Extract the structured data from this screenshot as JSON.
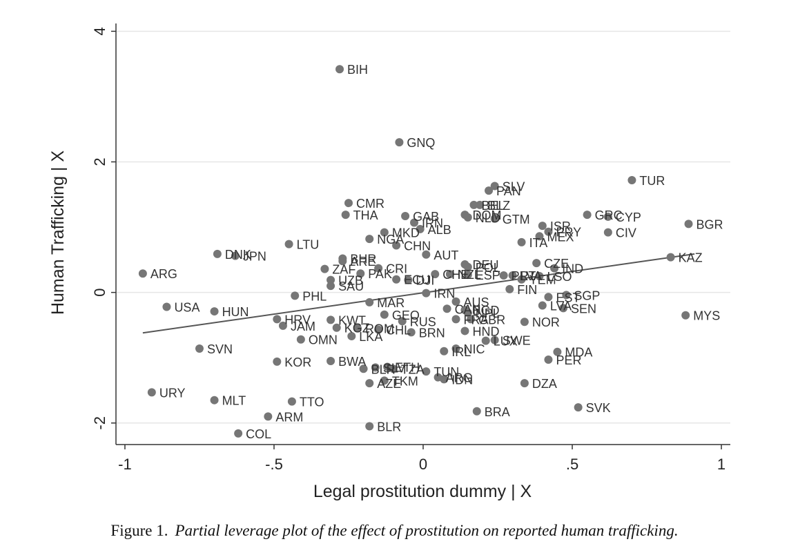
{
  "chart_data": {
    "type": "scatter",
    "xlabel": "Legal prostitution dummy | X",
    "ylabel": "Human Trafficking | X",
    "xlim": [
      -1.03,
      1.03
    ],
    "ylim": [
      -2.33,
      4.12
    ],
    "xticks": [
      -1,
      -0.5,
      0,
      0.5,
      1
    ],
    "xtick_labels": [
      "-1",
      "-.5",
      "0",
      ".5",
      "1"
    ],
    "yticks": [
      -2,
      0,
      2,
      4
    ],
    "ytick_labels": [
      "-2",
      "0",
      "2",
      "4"
    ],
    "grid": "horizontal",
    "point_color": "#767676",
    "line_color": "#555555",
    "fit_line": {
      "x": [
        -0.94,
        0.91
      ],
      "y": [
        -0.62,
        0.59
      ]
    },
    "points": [
      {
        "label": "BIH",
        "x": -0.28,
        "y": 3.42
      },
      {
        "label": "GNQ",
        "x": -0.08,
        "y": 2.3
      },
      {
        "label": "TUR",
        "x": 0.7,
        "y": 1.72
      },
      {
        "label": "SLV",
        "x": 0.24,
        "y": 1.63
      },
      {
        "label": "PAN",
        "x": 0.22,
        "y": 1.56
      },
      {
        "label": "CMR",
        "x": -0.25,
        "y": 1.37
      },
      {
        "label": "BEL",
        "x": 0.17,
        "y": 1.34
      },
      {
        "label": "BLZ",
        "x": 0.19,
        "y": 1.34
      },
      {
        "label": "THA",
        "x": -0.26,
        "y": 1.19
      },
      {
        "label": "GAB",
        "x": -0.06,
        "y": 1.17
      },
      {
        "label": "DOM",
        "x": 0.14,
        "y": 1.19
      },
      {
        "label": "NLD",
        "x": 0.15,
        "y": 1.15
      },
      {
        "label": "GTM",
        "x": 0.24,
        "y": 1.13
      },
      {
        "label": "GRC",
        "x": 0.55,
        "y": 1.19
      },
      {
        "label": "CYP",
        "x": 0.62,
        "y": 1.16
      },
      {
        "label": "BGR",
        "x": 0.89,
        "y": 1.05
      },
      {
        "label": "ISR",
        "x": 0.4,
        "y": 1.02
      },
      {
        "label": "IRN",
        "x": -0.03,
        "y": 1.07
      },
      {
        "label": "ALB",
        "x": -0.01,
        "y": 0.97
      },
      {
        "label": "MKD",
        "x": -0.13,
        "y": 0.92
      },
      {
        "label": "NGA",
        "x": -0.18,
        "y": 0.82
      },
      {
        "label": "CHN",
        "x": -0.09,
        "y": 0.72
      },
      {
        "label": "PRY",
        "x": 0.42,
        "y": 0.93
      },
      {
        "label": "MEX",
        "x": 0.39,
        "y": 0.86
      },
      {
        "label": "CIV",
        "x": 0.62,
        "y": 0.92
      },
      {
        "label": "ITA",
        "x": 0.33,
        "y": 0.77
      },
      {
        "label": "LTU",
        "x": -0.45,
        "y": 0.74
      },
      {
        "label": "DNK",
        "x": -0.69,
        "y": 0.59
      },
      {
        "label": "JPN",
        "x": -0.63,
        "y": 0.56
      },
      {
        "label": "AUT",
        "x": 0.01,
        "y": 0.58
      },
      {
        "label": "KAZ",
        "x": 0.83,
        "y": 0.54
      },
      {
        "label": "BHR",
        "x": -0.27,
        "y": 0.52
      },
      {
        "label": "ARE",
        "x": -0.27,
        "y": 0.48
      },
      {
        "label": "CZE",
        "x": 0.38,
        "y": 0.45
      },
      {
        "label": "IND",
        "x": 0.44,
        "y": 0.37
      },
      {
        "label": "ZAF",
        "x": -0.33,
        "y": 0.36
      },
      {
        "label": "CRI",
        "x": -0.15,
        "y": 0.37
      },
      {
        "label": "DEU",
        "x": 0.14,
        "y": 0.43
      },
      {
        "label": "POL",
        "x": 0.15,
        "y": 0.39
      },
      {
        "label": "ARG",
        "x": -0.94,
        "y": 0.29
      },
      {
        "label": "PAK",
        "x": -0.21,
        "y": 0.29
      },
      {
        "label": "CHE",
        "x": 0.04,
        "y": 0.28
      },
      {
        "label": "NZL",
        "x": 0.09,
        "y": 0.28
      },
      {
        "label": "ESP",
        "x": 0.15,
        "y": 0.27
      },
      {
        "label": "PRT",
        "x": 0.27,
        "y": 0.26
      },
      {
        "label": "LVA",
        "x": 0.3,
        "y": 0.26
      },
      {
        "label": "LSO",
        "x": 0.39,
        "y": 0.25
      },
      {
        "label": "UZB",
        "x": -0.31,
        "y": 0.19
      },
      {
        "label": "ECU",
        "x": -0.09,
        "y": 0.2
      },
      {
        "label": "DJI",
        "x": -0.05,
        "y": 0.19
      },
      {
        "label": "YEM",
        "x": 0.33,
        "y": 0.2
      },
      {
        "label": "SAU",
        "x": -0.31,
        "y": 0.1
      },
      {
        "label": "FIN",
        "x": 0.29,
        "y": 0.05
      },
      {
        "label": "PHL",
        "x": -0.43,
        "y": -0.05
      },
      {
        "label": "IRN",
        "x": 0.01,
        "y": -0.01
      },
      {
        "label": "EST",
        "x": 0.42,
        "y": -0.07
      },
      {
        "label": "SGP",
        "x": 0.48,
        "y": -0.04
      },
      {
        "label": "MAR",
        "x": -0.18,
        "y": -0.15
      },
      {
        "label": "AUS",
        "x": 0.11,
        "y": -0.14
      },
      {
        "label": "LVA",
        "x": 0.4,
        "y": -0.2
      },
      {
        "label": "SEN",
        "x": 0.47,
        "y": -0.24
      },
      {
        "label": "USA",
        "x": -0.86,
        "y": -0.22
      },
      {
        "label": "HUN",
        "x": -0.7,
        "y": -0.29
      },
      {
        "label": "CAN",
        "x": 0.08,
        "y": -0.25
      },
      {
        "label": "BGD",
        "x": 0.14,
        "y": -0.27
      },
      {
        "label": "NPL",
        "x": 0.15,
        "y": -0.31
      },
      {
        "label": "MYS",
        "x": 0.88,
        "y": -0.35
      },
      {
        "label": "GEO",
        "x": -0.13,
        "y": -0.34
      },
      {
        "label": "HRV",
        "x": -0.49,
        "y": -0.41
      },
      {
        "label": "KWT",
        "x": -0.31,
        "y": -0.42
      },
      {
        "label": "RUS",
        "x": -0.07,
        "y": -0.44
      },
      {
        "label": "FRA",
        "x": 0.11,
        "y": -0.41
      },
      {
        "label": "GBR",
        "x": 0.16,
        "y": -0.41
      },
      {
        "label": "NOR",
        "x": 0.34,
        "y": -0.45
      },
      {
        "label": "JAM",
        "x": -0.47,
        "y": -0.51
      },
      {
        "label": "KGZ",
        "x": -0.29,
        "y": -0.54
      },
      {
        "label": "ROM",
        "x": -0.22,
        "y": -0.55
      },
      {
        "label": "CHL",
        "x": -0.15,
        "y": -0.57
      },
      {
        "label": "BRN",
        "x": -0.04,
        "y": -0.61
      },
      {
        "label": "HND",
        "x": 0.14,
        "y": -0.59
      },
      {
        "label": "LKA",
        "x": -0.24,
        "y": -0.67
      },
      {
        "label": "OMN",
        "x": -0.41,
        "y": -0.72
      },
      {
        "label": "LUX",
        "x": 0.21,
        "y": -0.74
      },
      {
        "label": "SWE",
        "x": 0.24,
        "y": -0.73
      },
      {
        "label": "SVN",
        "x": -0.75,
        "y": -0.86
      },
      {
        "label": "NIC",
        "x": 0.11,
        "y": -0.86
      },
      {
        "label": "IRL",
        "x": 0.07,
        "y": -0.9
      },
      {
        "label": "MDA",
        "x": 0.45,
        "y": -0.91
      },
      {
        "label": "PER",
        "x": 0.42,
        "y": -1.03
      },
      {
        "label": "KOR",
        "x": -0.49,
        "y": -1.06
      },
      {
        "label": "BWA",
        "x": -0.31,
        "y": -1.05
      },
      {
        "label": "BLR",
        "x": -0.2,
        "y": -1.17
      },
      {
        "label": "SLV",
        "x": -0.16,
        "y": -1.15
      },
      {
        "label": "ETH",
        "x": -0.12,
        "y": -1.14
      },
      {
        "label": "TZA",
        "x": -0.1,
        "y": -1.17
      },
      {
        "label": "TUN",
        "x": 0.01,
        "y": -1.21
      },
      {
        "label": "ARG",
        "x": 0.05,
        "y": -1.3
      },
      {
        "label": "IDN",
        "x": 0.07,
        "y": -1.33
      },
      {
        "label": "TKM",
        "x": -0.13,
        "y": -1.35
      },
      {
        "label": "AZE",
        "x": -0.18,
        "y": -1.39
      },
      {
        "label": "DZA",
        "x": 0.34,
        "y": -1.39
      },
      {
        "label": "URY",
        "x": -0.91,
        "y": -1.53
      },
      {
        "label": "MLT",
        "x": -0.7,
        "y": -1.65
      },
      {
        "label": "TTO",
        "x": -0.44,
        "y": -1.67
      },
      {
        "label": "SVK",
        "x": 0.52,
        "y": -1.76
      },
      {
        "label": "BRA",
        "x": 0.18,
        "y": -1.82
      },
      {
        "label": "ARM",
        "x": -0.52,
        "y": -1.9
      },
      {
        "label": "BLR",
        "x": -0.18,
        "y": -2.05
      },
      {
        "label": "COL",
        "x": -0.62,
        "y": -2.16
      }
    ]
  },
  "caption": {
    "number": "Figure 1.",
    "text": "Partial leverage plot of the effect of prostitution on reported human trafficking."
  }
}
